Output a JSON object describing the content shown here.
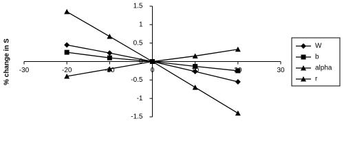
{
  "chart_data": {
    "type": "line",
    "y_label": "% change in S",
    "x": [
      -20,
      -10,
      0,
      10,
      20
    ],
    "series": [
      {
        "name": "W",
        "color": "#000000",
        "marker": "diamond",
        "values": [
          0.45,
          0.23,
          0,
          -0.27,
          -0.55
        ]
      },
      {
        "name": "b",
        "color": "#000000",
        "marker": "square",
        "values": [
          0.25,
          0.1,
          0,
          -0.13,
          -0.25
        ]
      },
      {
        "name": "alpha",
        "color": "#000000",
        "marker": "triangle",
        "values": [
          1.35,
          0.68,
          0,
          -0.7,
          -1.4
        ]
      },
      {
        "name": "r",
        "color": "#000000",
        "marker": "triangle",
        "values": [
          -0.4,
          -0.2,
          0,
          0.15,
          0.33
        ]
      }
    ],
    "xlim": [
      -30,
      30
    ],
    "xticks": [
      -30,
      -20,
      -10,
      0,
      10,
      20,
      30
    ],
    "ylim": [
      -1.5,
      1.5
    ],
    "yticks": [
      -1.5,
      -1,
      -0.5,
      0,
      0.5,
      1,
      1.5
    ],
    "legend": "right"
  }
}
